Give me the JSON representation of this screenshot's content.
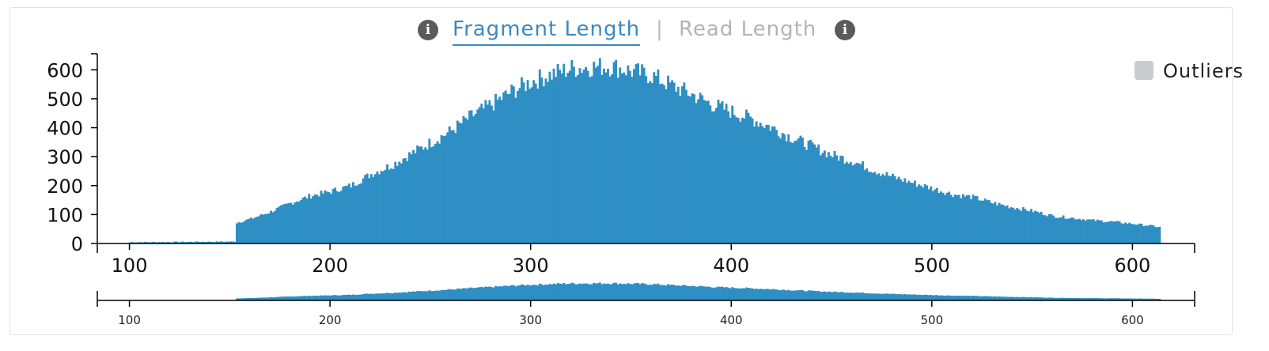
{
  "tabs": {
    "active": "Fragment Length",
    "separator": "|",
    "inactive": "Read Length",
    "info_icon_glyph": "i",
    "left_info_icon": "info-icon",
    "right_info_icon": "info-icon"
  },
  "legend": {
    "label": "Outliers",
    "checked": false,
    "swatch_color": "#c9cbcd"
  },
  "colors": {
    "bar": "#2e8fc4",
    "active_tab": "#3a88c4",
    "inactive_tab": "#b4b4b4"
  },
  "chart_data": [
    {
      "type": "bar",
      "name": "main",
      "xlim": [
        84,
        631
      ],
      "ylim": [
        0,
        650
      ],
      "x_ticks": [
        100,
        200,
        300,
        400,
        500,
        600
      ],
      "y_ticks": [
        0,
        100,
        200,
        300,
        400,
        500,
        600
      ],
      "bin_start": 100,
      "bin_end": 614,
      "bin_width": 1,
      "profile_points": [
        [
          100,
          3
        ],
        [
          130,
          4
        ],
        [
          150,
          5
        ],
        [
          152,
          5
        ],
        [
          153,
          72
        ],
        [
          160,
          85
        ],
        [
          170,
          110
        ],
        [
          180,
          140
        ],
        [
          190,
          165
        ],
        [
          200,
          180
        ],
        [
          210,
          200
        ],
        [
          220,
          240
        ],
        [
          230,
          270
        ],
        [
          240,
          310
        ],
        [
          250,
          350
        ],
        [
          260,
          390
        ],
        [
          270,
          440
        ],
        [
          280,
          480
        ],
        [
          290,
          525
        ],
        [
          300,
          560
        ],
        [
          310,
          585
        ],
        [
          320,
          605
        ],
        [
          330,
          610
        ],
        [
          340,
          612
        ],
        [
          350,
          595
        ],
        [
          360,
          580
        ],
        [
          370,
          545
        ],
        [
          380,
          515
        ],
        [
          390,
          480
        ],
        [
          400,
          455
        ],
        [
          410,
          430
        ],
        [
          420,
          400
        ],
        [
          430,
          365
        ],
        [
          440,
          335
        ],
        [
          450,
          305
        ],
        [
          460,
          285
        ],
        [
          470,
          255
        ],
        [
          480,
          230
        ],
        [
          490,
          210
        ],
        [
          500,
          190
        ],
        [
          510,
          170
        ],
        [
          520,
          160
        ],
        [
          530,
          140
        ],
        [
          540,
          125
        ],
        [
          550,
          112
        ],
        [
          560,
          95
        ],
        [
          570,
          88
        ],
        [
          580,
          80
        ],
        [
          590,
          75
        ],
        [
          600,
          68
        ],
        [
          610,
          60
        ],
        [
          614,
          55
        ]
      ],
      "xlabel": "",
      "ylabel": ""
    },
    {
      "type": "bar",
      "name": "context",
      "xlim": [
        84,
        631
      ],
      "x_ticks": [
        100,
        200,
        300,
        400,
        500,
        600
      ],
      "note_series": "overview of main histogram"
    }
  ]
}
